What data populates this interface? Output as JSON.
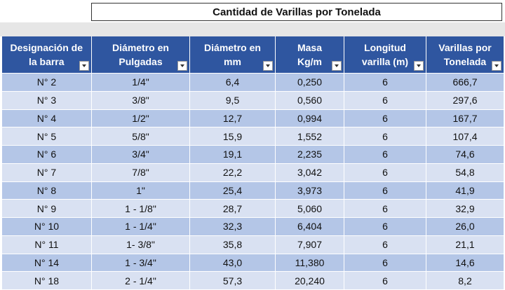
{
  "title": "Cantidad de Varillas por Tonelada",
  "table": {
    "header": [
      [
        "Designación de",
        "la barra"
      ],
      [
        "Diámetro en",
        "Pulgadas"
      ],
      [
        "Diámetro en",
        "mm"
      ],
      [
        "Masa",
        "Kg/m"
      ],
      [
        "Longitud",
        "varilla (m)"
      ],
      [
        "Varillas por",
        "Tonelada"
      ]
    ],
    "rows": [
      [
        "N° 2",
        "1/4\"",
        "6,4",
        "0,250",
        "6",
        "666,7"
      ],
      [
        "N° 3",
        "3/8\"",
        "9,5",
        "0,560",
        "6",
        "297,6"
      ],
      [
        "N° 4",
        "1/2\"",
        "12,7",
        "0,994",
        "6",
        "167,7"
      ],
      [
        "N° 5",
        "5/8\"",
        "15,9",
        "1,552",
        "6",
        "107,4"
      ],
      [
        "N° 6",
        "3/4\"",
        "19,1",
        "2,235",
        "6",
        "74,6"
      ],
      [
        "N° 7",
        "7/8\"",
        "22,2",
        "3,042",
        "6",
        "54,8"
      ],
      [
        "N° 8",
        "1\"",
        "25,4",
        "3,973",
        "6",
        "41,9"
      ],
      [
        "N° 9",
        "1 - 1/8\"",
        "28,7",
        "5,060",
        "6",
        "32,9"
      ],
      [
        "N° 10",
        "1 - 1/4\"",
        "32,3",
        "6,404",
        "6",
        "26,0"
      ],
      [
        "N° 11",
        "1- 3/8\"",
        "35,8",
        "7,907",
        "6",
        "21,1"
      ],
      [
        "N° 14",
        "1 - 3/4\"",
        "43,0",
        "11,380",
        "6",
        "14,6"
      ],
      [
        "N° 18",
        "2 - 1/4\"",
        "57,3",
        "20,240",
        "6",
        "8,2"
      ]
    ]
  }
}
